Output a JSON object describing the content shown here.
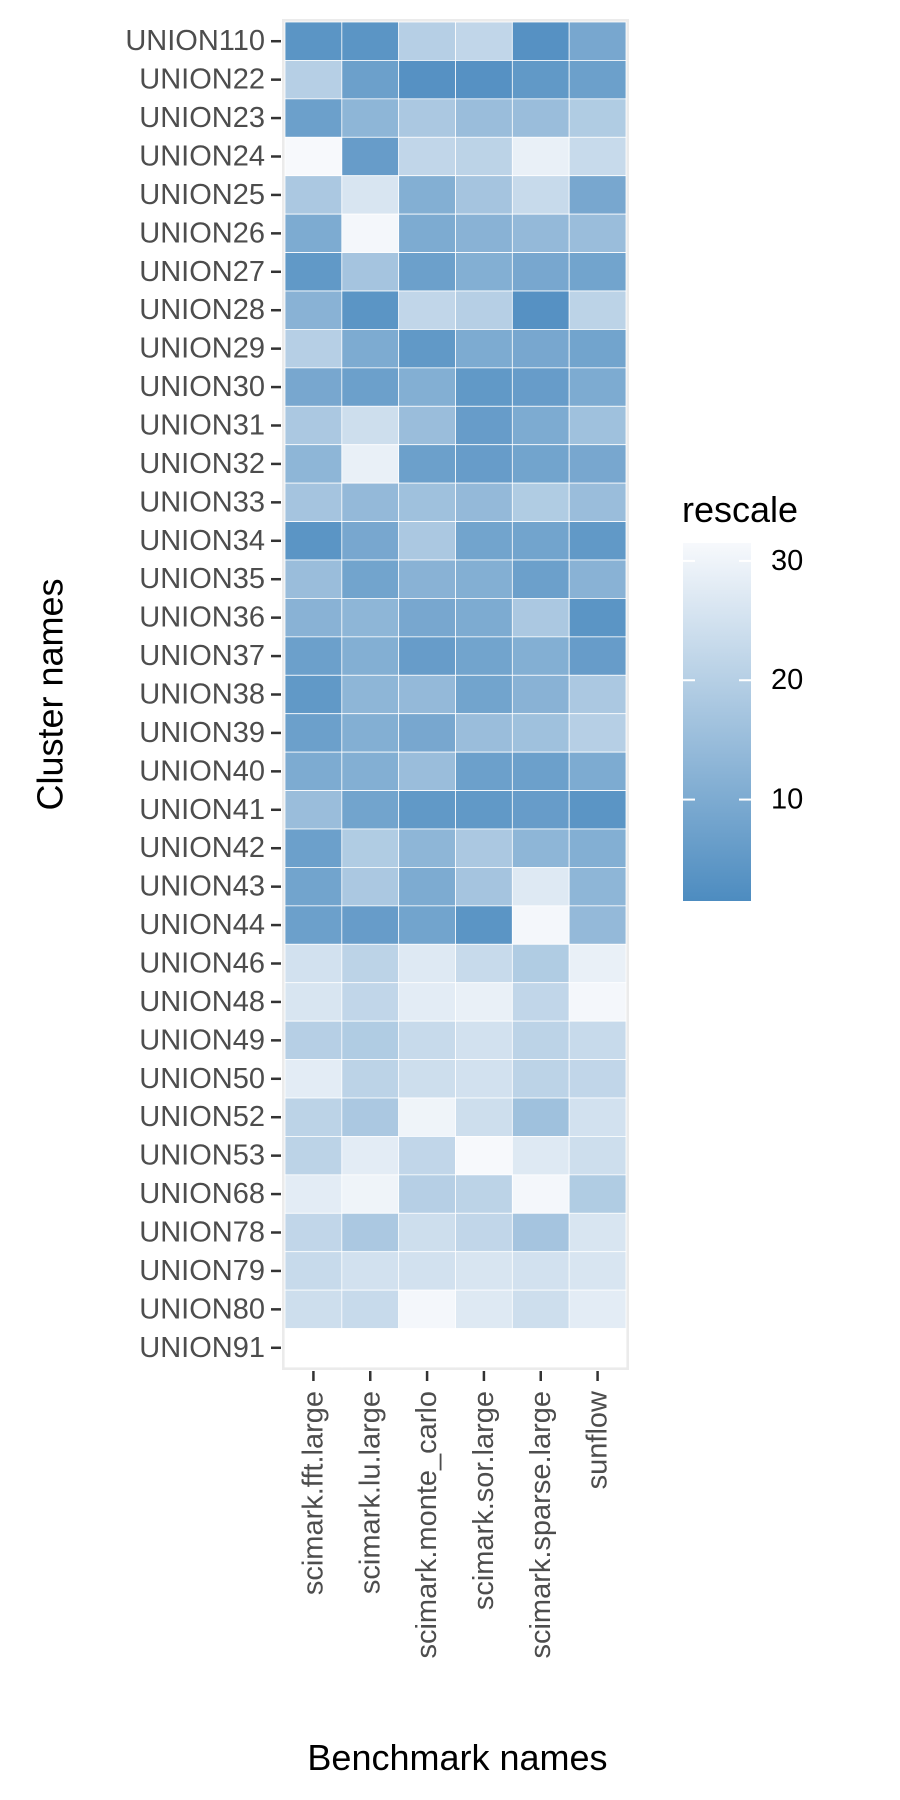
{
  "chart_data": {
    "type": "heatmap",
    "xlabel": "Benchmark names",
    "ylabel": "Cluster names",
    "x_categories": [
      "scimark.fft.large",
      "scimark.lu.large",
      "scimark.monte_carlo",
      "scimark.sor.large",
      "scimark.sparse.large",
      "sunflow"
    ],
    "y_categories": [
      "UNION110",
      "UNION22",
      "UNION23",
      "UNION24",
      "UNION25",
      "UNION26",
      "UNION27",
      "UNION28",
      "UNION29",
      "UNION30",
      "UNION31",
      "UNION32",
      "UNION33",
      "UNION34",
      "UNION35",
      "UNION36",
      "UNION37",
      "UNION38",
      "UNION39",
      "UNION40",
      "UNION41",
      "UNION42",
      "UNION43",
      "UNION44",
      "UNION46",
      "UNION48",
      "UNION49",
      "UNION50",
      "UNION52",
      "UNION53",
      "UNION68",
      "UNION78",
      "UNION79",
      "UNION80",
      "UNION91"
    ],
    "values": [
      [
        4,
        4,
        20,
        22,
        3,
        9
      ],
      [
        20,
        7,
        3,
        3,
        5,
        7
      ],
      [
        7,
        13,
        18,
        15,
        15,
        19
      ],
      [
        32,
        6,
        22,
        21,
        29,
        23
      ],
      [
        18,
        26,
        11,
        17,
        23,
        9
      ],
      [
        10,
        31,
        10,
        12,
        14,
        15
      ],
      [
        5,
        17,
        7,
        11,
        9,
        8
      ],
      [
        12,
        4,
        22,
        20,
        3,
        21
      ],
      [
        20,
        10,
        5,
        10,
        9,
        8
      ],
      [
        9,
        7,
        11,
        5,
        6,
        10
      ],
      [
        18,
        24,
        15,
        6,
        10,
        16
      ],
      [
        13,
        29,
        7,
        6,
        8,
        9
      ],
      [
        17,
        14,
        16,
        14,
        19,
        15
      ],
      [
        4,
        9,
        18,
        8,
        8,
        5
      ],
      [
        15,
        8,
        12,
        11,
        7,
        12
      ],
      [
        12,
        13,
        9,
        10,
        18,
        4
      ],
      [
        7,
        11,
        6,
        8,
        11,
        6
      ],
      [
        5,
        13,
        14,
        8,
        12,
        18
      ],
      [
        7,
        11,
        9,
        15,
        16,
        20
      ],
      [
        10,
        11,
        15,
        7,
        7,
        10
      ],
      [
        15,
        8,
        5,
        5,
        6,
        4
      ],
      [
        7,
        19,
        13,
        18,
        13,
        11
      ],
      [
        8,
        18,
        10,
        17,
        27,
        13
      ],
      [
        7,
        6,
        8,
        4,
        31,
        14
      ],
      [
        25,
        21,
        27,
        23,
        19,
        29
      ],
      [
        26,
        22,
        28,
        29,
        22,
        31
      ],
      [
        20,
        19,
        23,
        25,
        21,
        23
      ],
      [
        28,
        21,
        24,
        25,
        21,
        22
      ],
      [
        21,
        18,
        30,
        24,
        16,
        25
      ],
      [
        21,
        28,
        22,
        32,
        27,
        24
      ],
      [
        28,
        30,
        20,
        21,
        31,
        19
      ],
      [
        22,
        18,
        24,
        22,
        17,
        26
      ],
      [
        23,
        25,
        25,
        26,
        25,
        26
      ],
      [
        24,
        23,
        31,
        27,
        24,
        28
      ],
      [
        null,
        null,
        null,
        null,
        null,
        null
      ]
    ],
    "legend": {
      "title": "rescale",
      "ticks": [
        10,
        20,
        30
      ],
      "min": 1.5,
      "max": 31.5,
      "low_color": "#4d8cc0",
      "high_color": "#f7f9fc"
    },
    "background_color": "#ebebeb",
    "cell_border_color": "#ffffff"
  }
}
